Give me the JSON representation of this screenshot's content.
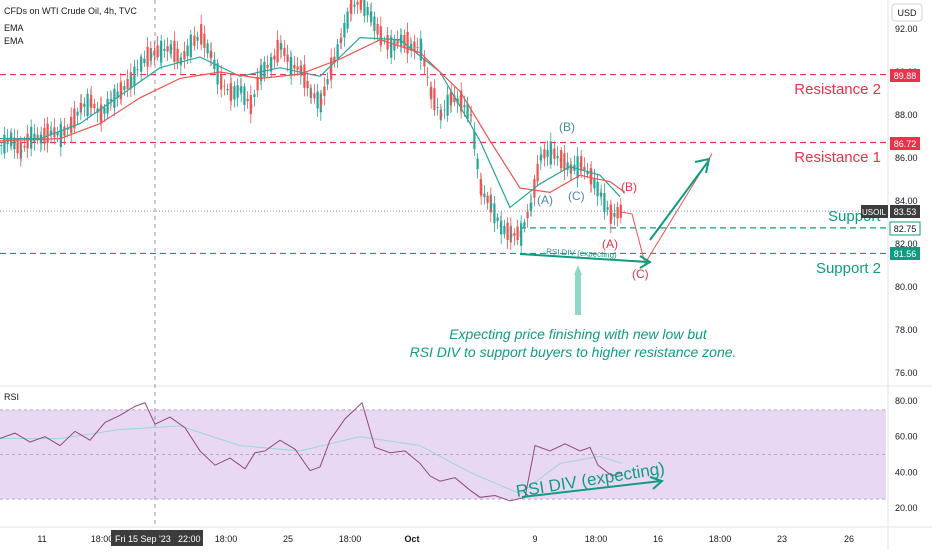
{
  "header": {
    "title": "CFDs on WTI Crude Oil, 4h, TVC",
    "indicators": [
      "EMA",
      "EMA"
    ],
    "currency": "USD"
  },
  "rsi_label": "RSI",
  "colors": {
    "bull": "#26a69a",
    "bear": "#ef5350",
    "ema_fast": "#26a69a",
    "ema_slow": "#ef5350",
    "resistance": "#e8334a",
    "support": "#109c82",
    "wave": "#4a8aa0",
    "annotation": "#109c82",
    "rsi_line": "#8e4a7a",
    "rsi_band": "#e9d8f3",
    "rsi_ma": "#9fd4e0"
  },
  "chart_data": [
    {
      "type": "candlestick",
      "title": "CFDs on WTI Crude Oil, 4h, TVC",
      "ylim": [
        75.0,
        92.8
      ],
      "y_ticks": [
        "92.00",
        "90.00",
        "88.00",
        "86.00",
        "84.00",
        "82.00",
        "80.00",
        "78.00",
        "76.00"
      ],
      "x_ticks": [
        "11",
        "18:00",
        "Fri 15 Sep '23",
        "22:00",
        "18:00",
        "25",
        "18:00",
        "Oct",
        "9",
        "18:00",
        "16",
        "18:00",
        "23",
        "26"
      ],
      "last_price": {
        "symbol": "USOIL",
        "value": "83.53"
      },
      "levels": [
        {
          "name": "Resistance 2",
          "value": 89.88,
          "label": "89.88"
        },
        {
          "name": "Resistance 1",
          "value": 86.72,
          "label": "86.72"
        },
        {
          "name": "Support 1",
          "value": 82.75,
          "label": "82.75"
        },
        {
          "name": "Support 2",
          "value": 81.56,
          "label": "81.56"
        }
      ],
      "level_texts": {
        "resistance_2": "Resistance 2",
        "resistance_1": "Resistance 1",
        "support_1": "Support",
        "support_2": "Support 2"
      },
      "wave_labels": {
        "a1": "(A)",
        "b1": "(B)",
        "c1": "(C)",
        "b2": "(B)",
        "a2": "(A)",
        "c2": "(C)"
      },
      "divergence_label": "RSI DIV (expecting)",
      "note_line1": "Expecting price finishing with new low but",
      "note_line2": "RSI DIV to support buyers to higher resistance zone.",
      "closes": [
        [
          0,
          86.6
        ],
        [
          10,
          86.9
        ],
        [
          20,
          86.3
        ],
        [
          30,
          87.0
        ],
        [
          40,
          86.9
        ],
        [
          50,
          87.2
        ],
        [
          60,
          87.1
        ],
        [
          70,
          87.5
        ],
        [
          80,
          88.4
        ],
        [
          90,
          88.6
        ],
        [
          100,
          88.0
        ],
        [
          110,
          88.7
        ],
        [
          120,
          89.1
        ],
        [
          130,
          89.6
        ],
        [
          140,
          90.4
        ],
        [
          150,
          90.8
        ],
        [
          160,
          91.0
        ],
        [
          170,
          91.1
        ],
        [
          180,
          90.5
        ],
        [
          190,
          91.3
        ],
        [
          200,
          91.7
        ],
        [
          210,
          90.8
        ],
        [
          220,
          89.5
        ],
        [
          230,
          89.0
        ],
        [
          240,
          89.2
        ],
        [
          250,
          88.4
        ],
        [
          260,
          90.0
        ],
        [
          270,
          90.4
        ],
        [
          280,
          91.2
        ],
        [
          290,
          90.3
        ],
        [
          300,
          90.1
        ],
        [
          310,
          89.0
        ],
        [
          320,
          88.6
        ],
        [
          330,
          90.1
        ],
        [
          340,
          91.5
        ],
        [
          350,
          93.0
        ],
        [
          360,
          93.3
        ],
        [
          370,
          92.6
        ],
        [
          380,
          91.6
        ],
        [
          390,
          91.2
        ],
        [
          400,
          91.5
        ],
        [
          410,
          91.2
        ],
        [
          420,
          91.1
        ],
        [
          430,
          89.0
        ],
        [
          440,
          88.0
        ],
        [
          450,
          88.8
        ],
        [
          460,
          88.6
        ],
        [
          470,
          88.0
        ],
        [
          480,
          84.5
        ],
        [
          490,
          83.8
        ],
        [
          500,
          82.8
        ],
        [
          510,
          82.4
        ],
        [
          520,
          82.5
        ],
        [
          530,
          83.8
        ],
        [
          540,
          86.1
        ],
        [
          550,
          86.3
        ],
        [
          560,
          85.9
        ],
        [
          570,
          85.5
        ],
        [
          580,
          85.7
        ],
        [
          590,
          85.1
        ],
        [
          600,
          84.3
        ],
        [
          610,
          83.3
        ],
        [
          620,
          83.5
        ]
      ],
      "ema_fast": [
        [
          0,
          86.9
        ],
        [
          40,
          86.9
        ],
        [
          80,
          87.6
        ],
        [
          120,
          88.9
        ],
        [
          160,
          90.2
        ],
        [
          200,
          90.7
        ],
        [
          240,
          89.8
        ],
        [
          280,
          90.2
        ],
        [
          320,
          89.8
        ],
        [
          360,
          91.6
        ],
        [
          400,
          91.5
        ],
        [
          440,
          90.0
        ],
        [
          480,
          86.8
        ],
        [
          510,
          83.7
        ],
        [
          540,
          84.8
        ],
        [
          570,
          85.6
        ],
        [
          600,
          85.2
        ],
        [
          620,
          84.2
        ]
      ],
      "ema_slow": [
        [
          0,
          86.8
        ],
        [
          60,
          86.9
        ],
        [
          100,
          87.6
        ],
        [
          140,
          88.8
        ],
        [
          180,
          89.7
        ],
        [
          220,
          90.0
        ],
        [
          260,
          89.7
        ],
        [
          300,
          89.9
        ],
        [
          340,
          90.6
        ],
        [
          380,
          91.5
        ],
        [
          420,
          90.9
        ],
        [
          460,
          89.1
        ],
        [
          490,
          86.8
        ],
        [
          520,
          84.6
        ],
        [
          550,
          84.4
        ],
        [
          580,
          85.2
        ],
        [
          610,
          84.9
        ],
        [
          625,
          84.4
        ]
      ],
      "projection": [
        [
          620,
          83.5
        ],
        [
          632,
          83.4
        ],
        [
          645,
          81.1
        ],
        [
          712,
          86.2
        ]
      ]
    },
    {
      "type": "line",
      "title": "RSI",
      "ylim": [
        15,
        85
      ],
      "y_ticks": [
        "80.00",
        "60.00",
        "40.00",
        "20.00"
      ],
      "band": [
        25,
        75
      ],
      "midline": 50,
      "rsi": [
        [
          0,
          59
        ],
        [
          15,
          62
        ],
        [
          30,
          57
        ],
        [
          45,
          60
        ],
        [
          60,
          55
        ],
        [
          75,
          63
        ],
        [
          90,
          58
        ],
        [
          105,
          68
        ],
        [
          120,
          72
        ],
        [
          135,
          77
        ],
        [
          145,
          79
        ],
        [
          155,
          67
        ],
        [
          170,
          71
        ],
        [
          185,
          65
        ],
        [
          200,
          52
        ],
        [
          215,
          44
        ],
        [
          230,
          48
        ],
        [
          245,
          42
        ],
        [
          255,
          51
        ],
        [
          265,
          52
        ],
        [
          280,
          58
        ],
        [
          295,
          53
        ],
        [
          310,
          41
        ],
        [
          320,
          43
        ],
        [
          330,
          58
        ],
        [
          345,
          70
        ],
        [
          362,
          79
        ],
        [
          375,
          54
        ],
        [
          390,
          51
        ],
        [
          405,
          52
        ],
        [
          420,
          45
        ],
        [
          430,
          38
        ],
        [
          440,
          35
        ],
        [
          455,
          37
        ],
        [
          470,
          30
        ],
        [
          480,
          26
        ],
        [
          495,
          27
        ],
        [
          510,
          24
        ],
        [
          525,
          26
        ],
        [
          535,
          55
        ],
        [
          550,
          52
        ],
        [
          565,
          56
        ],
        [
          580,
          52
        ],
        [
          590,
          54
        ],
        [
          598,
          44
        ],
        [
          612,
          38
        ],
        [
          622,
          40
        ]
      ],
      "rsi_ma": [
        [
          0,
          59
        ],
        [
          60,
          59
        ],
        [
          120,
          64
        ],
        [
          180,
          66
        ],
        [
          240,
          55
        ],
        [
          300,
          52
        ],
        [
          360,
          60
        ],
        [
          420,
          55
        ],
        [
          470,
          40
        ],
        [
          520,
          28
        ],
        [
          560,
          45
        ],
        [
          600,
          49
        ],
        [
          622,
          45
        ]
      ]
    }
  ]
}
